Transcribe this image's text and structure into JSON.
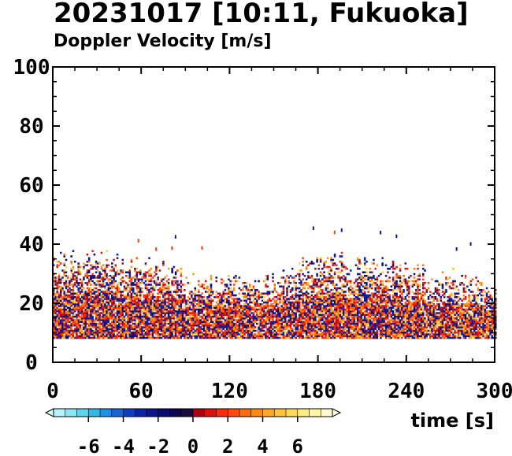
{
  "chart_data": {
    "type": "heatmap",
    "title": "20231017 [10:11, Fukuoka]",
    "subtitle": "Doppler Velocity [m/s]",
    "xlabel": "time [s]",
    "ylabel": "",
    "xlim": [
      0,
      300
    ],
    "ylim": [
      0,
      100
    ],
    "xticks": [
      0,
      60,
      120,
      180,
      240,
      300
    ],
    "yticks": [
      0,
      20,
      40,
      60,
      80,
      100
    ],
    "grid": false,
    "data_bottom": 8,
    "echo_top_profile": {
      "time": [
        0,
        30,
        60,
        90,
        120,
        150,
        180,
        210,
        240,
        270,
        300
      ],
      "height": [
        34,
        36,
        33,
        29,
        27,
        29,
        35,
        34,
        31,
        29,
        26
      ]
    },
    "colorbar": {
      "min": -8,
      "max": 8,
      "tick_labels": [
        "-6",
        "-4",
        "-2",
        "0",
        "2",
        "4",
        "6"
      ],
      "tick_values": [
        -6,
        -4,
        -2,
        0,
        2,
        4,
        6
      ],
      "colors": [
        "#b5f5ff",
        "#8ae8f5",
        "#5fd3ec",
        "#33b8e8",
        "#1e90e6",
        "#1565d8",
        "#0d3fc4",
        "#0a24a8",
        "#0a1590",
        "#0b0a6e",
        "#0a0550",
        "#1a0a40",
        "#b00010",
        "#e0100c",
        "#ff2b0a",
        "#ff4a0a",
        "#ff6a0a",
        "#ff8a10",
        "#ffa820",
        "#ffc43a",
        "#ffda5a",
        "#ffec80",
        "#fff6a8",
        "#fffbd0"
      ]
    }
  }
}
